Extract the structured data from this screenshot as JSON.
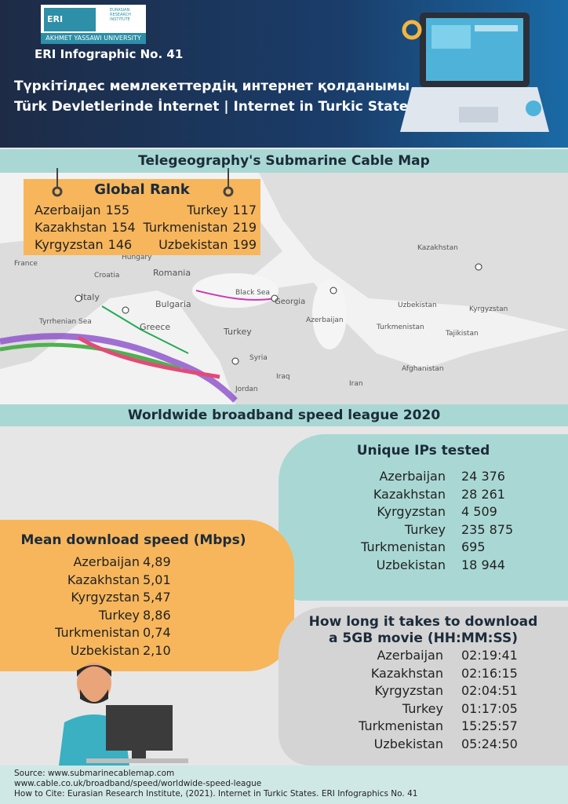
{
  "logo": {
    "short": "ERI",
    "institute_line1": "EURASIAN",
    "institute_line2": "RESEARCH",
    "institute_line3": "INSTITUTE",
    "university": "AKHMET YASSAWI UNIVERSITY"
  },
  "header": {
    "series": "ERI Infographic No. 41",
    "title_kz": "Түркітілдес мемлекеттердің интернет қолданымы",
    "title_tr_en": "Türk Devletlerinde İnternet | Internet in Turkic States"
  },
  "map": {
    "title": "Telegeography's Submarine Cable Map",
    "labels": [
      "France",
      "Croatia",
      "Hungary",
      "Romania",
      "Italy",
      "Bulgaria",
      "Tyrrhenian Sea",
      "Greece",
      "Black Sea",
      "Georgia",
      "Azerbaijan",
      "Turkey",
      "Syria",
      "Iraq",
      "Iran",
      "Jordan",
      "Kazakhstan",
      "Uzbekistan",
      "Kyrgyzstan",
      "Turkmenistan",
      "Tajikistan",
      "Afghanistan"
    ]
  },
  "global_rank": {
    "title": "Global Rank",
    "left": [
      [
        "Azerbaijan",
        "155"
      ],
      [
        "Kazakhstan",
        "154"
      ],
      [
        "Kyrgyzstan",
        "146"
      ]
    ],
    "right": [
      [
        "Turkey",
        "117"
      ],
      [
        "Turkmenistan",
        "219"
      ],
      [
        "Uzbekistan",
        "199"
      ]
    ]
  },
  "league": {
    "title": "Worldwide broadband speed league 2020"
  },
  "unique_ips": {
    "title": "Unique IPs tested",
    "rows": [
      [
        "Azerbaijan",
        "24 376"
      ],
      [
        "Kazakhstan",
        "28 261"
      ],
      [
        "Kyrgyzstan",
        "4 509"
      ],
      [
        "Turkey",
        "235 875"
      ],
      [
        "Turkmenistan",
        "695"
      ],
      [
        "Uzbekistan",
        "18 944"
      ]
    ]
  },
  "mean_download": {
    "title": "Mean download speed (Mbps)",
    "rows": [
      [
        "Azerbaijan",
        "4,89"
      ],
      [
        "Kazakhstan",
        "5,01"
      ],
      [
        "Kyrgyzstan",
        "5,47"
      ],
      [
        "Turkey",
        "8,86"
      ],
      [
        "Turkmenistan",
        "0,74"
      ],
      [
        "Uzbekistan",
        "2,10"
      ]
    ]
  },
  "download_time": {
    "title_line1": "How long it takes to download",
    "title_line2": "a 5GB movie (HH:MM:SS)",
    "rows": [
      [
        "Azerbaijan",
        "02:19:41"
      ],
      [
        "Kazakhstan",
        "02:16:15"
      ],
      [
        "Kyrgyzstan",
        "02:04:51"
      ],
      [
        "Turkey",
        "01:17:05"
      ],
      [
        "Turkmenistan",
        "15:25:57"
      ],
      [
        "Uzbekistan",
        "05:24:50"
      ]
    ]
  },
  "footer": {
    "lines": [
      "Source: www.submarinecablemap.com",
      "www.cable.co.uk/broadband/speed/worldwide-speed-league",
      "How to Cite: Eurasian Research Institute, (2021). Internet in Turkic States. ERI Infographics No. 41"
    ]
  }
}
